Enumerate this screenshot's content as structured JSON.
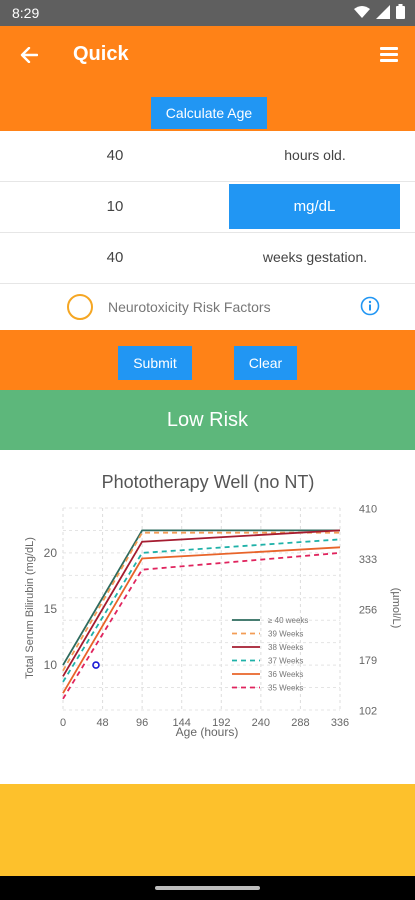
{
  "status_bar": {
    "time": "8:29"
  },
  "app_bar": {
    "title": "Quick",
    "calculate_age_label": "Calculate Age"
  },
  "inputs": {
    "age": {
      "value": "40",
      "unit": "hours old."
    },
    "bilirubin": {
      "value": "10",
      "unit": "mg/dL"
    },
    "gestation": {
      "value": "40",
      "unit": "weeks gestation."
    }
  },
  "risk_factors": {
    "label": "Neurotoxicity Risk Factors"
  },
  "actions": {
    "submit_label": "Submit",
    "clear_label": "Clear"
  },
  "result": {
    "label": "Low Risk",
    "color": "#5db77b"
  },
  "colors": {
    "primary": "#ff8217",
    "accent": "#2196f3",
    "footer": "#fdc12c"
  },
  "chart_data": {
    "type": "line",
    "title": "Phototherapy Well (no NT)",
    "xlabel": "Age (hours)",
    "ylabel": "Total Serum Bilirubin (mg/dL)",
    "y2label": "(µmol/L)",
    "xlim": [
      0,
      336
    ],
    "ylim": [
      6,
      24
    ],
    "xticks": [
      "0",
      "48",
      "96",
      "144",
      "192",
      "240",
      "288",
      "336"
    ],
    "yticks": [
      "10",
      "15",
      "20"
    ],
    "y2ticks": [
      "102",
      "179",
      "256",
      "333",
      "410"
    ],
    "grid": true,
    "legend_position": "bottom-right",
    "series": [
      {
        "name": "≥ 40 weeks",
        "color": "#2e6b5e",
        "dash": "solid",
        "x": [
          0,
          96,
          336
        ],
        "y": [
          10,
          22,
          22
        ]
      },
      {
        "name": "39 Weeks",
        "color": "#f39c55",
        "dash": "dash",
        "x": [
          0,
          96,
          336
        ],
        "y": [
          9.5,
          21.8,
          21.8
        ]
      },
      {
        "name": "38 Weeks",
        "color": "#a51c30",
        "dash": "solid",
        "x": [
          0,
          96,
          336
        ],
        "y": [
          9,
          21,
          22
        ]
      },
      {
        "name": "37 Weeks",
        "color": "#1fb1a8",
        "dash": "dash",
        "x": [
          0,
          96,
          336
        ],
        "y": [
          8.5,
          20,
          21.2
        ]
      },
      {
        "name": "36 Weeks",
        "color": "#e8642a",
        "dash": "solid",
        "x": [
          0,
          96,
          336
        ],
        "y": [
          7.5,
          19.5,
          20.5
        ]
      },
      {
        "name": "35 Weeks",
        "color": "#e0245e",
        "dash": "dash",
        "x": [
          0,
          96,
          336
        ],
        "y": [
          7,
          18.5,
          20
        ]
      }
    ],
    "points": [
      {
        "x": 40,
        "y": 10,
        "color": "#1a1ad6"
      }
    ]
  }
}
